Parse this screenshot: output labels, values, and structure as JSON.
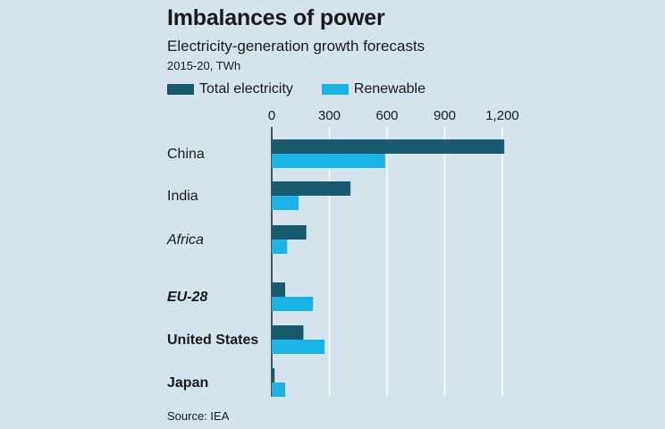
{
  "title": "Imbalances of power",
  "subtitle": "Electricity-generation growth forecasts",
  "units": "2015-20, TWh",
  "source": "Source: IEA",
  "colors": {
    "total": "#175a6f",
    "renewable": "#19b3e6",
    "background": "#d5e3ec",
    "grid": "#ffffff"
  },
  "chart_data": {
    "type": "bar",
    "orientation": "horizontal",
    "title": "Imbalances of power",
    "subtitle": "Electricity-generation growth forecasts",
    "xlabel": "2015-20, TWh",
    "xlim": [
      0,
      1200
    ],
    "xticks": [
      0,
      300,
      600,
      900,
      1200
    ],
    "xtick_labels": [
      "0",
      "300",
      "600",
      "900",
      "1,200"
    ],
    "legend": [
      "Total electricity",
      "Renewable"
    ],
    "categories": [
      {
        "label": "China",
        "style": "normal"
      },
      {
        "label": "India",
        "style": "normal"
      },
      {
        "label": "Africa",
        "style": "italic"
      },
      {
        "label": "EU-28",
        "style": "bold-italic"
      },
      {
        "label": "United States",
        "style": "bold"
      },
      {
        "label": "Japan",
        "style": "bold"
      }
    ],
    "series": [
      {
        "name": "Total electricity",
        "values": [
          1210,
          410,
          180,
          70,
          165,
          15
        ]
      },
      {
        "name": "Renewable",
        "values": [
          590,
          140,
          80,
          215,
          275,
          70
        ]
      }
    ]
  }
}
